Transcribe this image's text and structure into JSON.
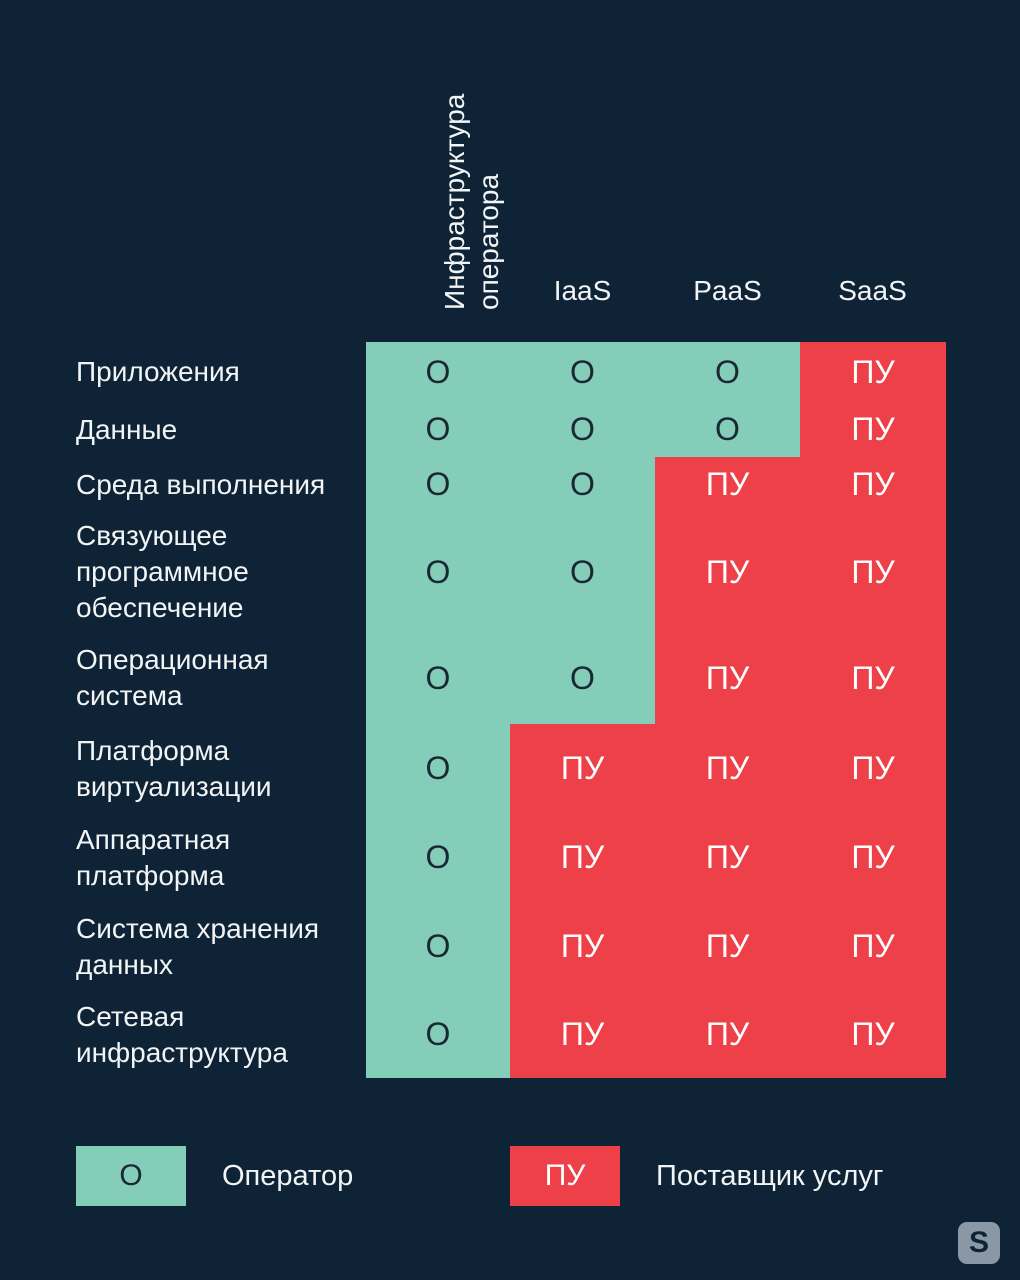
{
  "columns": {
    "infra": [
      "Инфраструктура",
      "оператора"
    ],
    "iaas": "IaaS",
    "paas": "PaaS",
    "saas": "SaaS"
  },
  "rows": [
    {
      "label": "Приложения",
      "cells": [
        "О",
        "О",
        "О",
        "ПУ"
      ]
    },
    {
      "label": "Данные",
      "cells": [
        "О",
        "О",
        "О",
        "ПУ"
      ]
    },
    {
      "label": "Среда выполнения",
      "cells": [
        "О",
        "О",
        "ПУ",
        "ПУ"
      ]
    },
    {
      "label": "Связующее программное обеспечение",
      "cells": [
        "О",
        "О",
        "ПУ",
        "ПУ"
      ]
    },
    {
      "label": "Операционная система",
      "cells": [
        "О",
        "О",
        "ПУ",
        "ПУ"
      ]
    },
    {
      "label": "Платформа виртуализации",
      "cells": [
        "О",
        "ПУ",
        "ПУ",
        "ПУ"
      ]
    },
    {
      "label": "Аппаратная платформа",
      "cells": [
        "О",
        "ПУ",
        "ПУ",
        "ПУ"
      ]
    },
    {
      "label": "Система хранения данных",
      "cells": [
        "О",
        "ПУ",
        "ПУ",
        "ПУ"
      ]
    },
    {
      "label": "Сетевая инфраструктура",
      "cells": [
        "О",
        "ПУ",
        "ПУ",
        "ПУ"
      ]
    }
  ],
  "legend": {
    "operator_code": "О",
    "operator_label": "Оператор",
    "provider_code": "ПУ",
    "provider_label": "Поставщик услуг"
  },
  "colors": {
    "background": "#0e2336",
    "operator": "#84cdb9",
    "provider": "#ee4049"
  },
  "logo": {
    "letter": "S",
    "icon": "logo-icon"
  }
}
